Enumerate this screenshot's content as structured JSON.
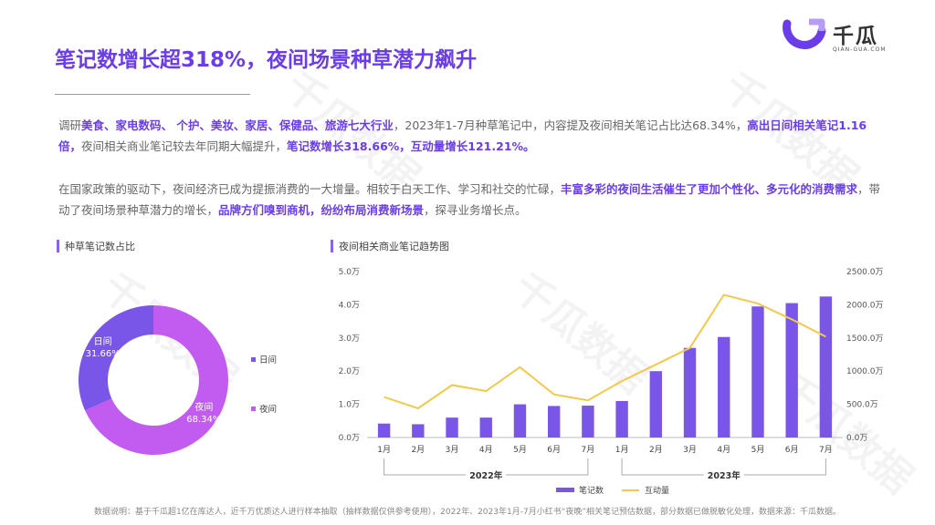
{
  "title": "笔记数增长超318%，夜间场景种草潜力飙升",
  "logo": {
    "name": "千瓜",
    "sub": "QIAN-GUA.COM",
    "color": "#6a3de8"
  },
  "watermark": "千瓜数据",
  "paragraph1": [
    {
      "t": "调研",
      "hl": false
    },
    {
      "t": "美食、家电数码、 个护、美妆、家居、保健品、旅游七大行业",
      "hl": true
    },
    {
      "t": "，2023年1-7月种草笔记中，内容提及夜间相关笔记占比达68.34%，",
      "hl": false
    },
    {
      "t": "高出日间相关笔记1.16倍，",
      "hl": true
    },
    {
      "t": "夜间相关商业笔记较去年同期大幅提升，",
      "hl": false
    },
    {
      "t": "笔记数增长318.66%，互动量增长121.21%。",
      "hl": true
    }
  ],
  "paragraph2": [
    {
      "t": "在国家政策的驱动下，夜间经济已成为提振消费的一大增量。相较于白天工作、学习和社交的忙碌，",
      "hl": false
    },
    {
      "t": "丰富多彩的夜间生活催生了更加个性化、多元化的消费需求",
      "hl": true
    },
    {
      "t": "，带动了夜间场景种草潜力的增长，",
      "hl": false
    },
    {
      "t": "品牌方们嗅到商机，纷纷布局消费新场景",
      "hl": true
    },
    {
      "t": "，探寻业务增长点。",
      "hl": false
    }
  ],
  "section1_title": "种草笔记数占比",
  "section2_title": "夜间相关商业笔记趋势图",
  "footer": "数据说明：基于千瓜超1亿在库达人，近千万优质达人进行样本抽取（抽样数据仅供参考使用），2022年、2023年1月-7月小红书“夜晚”相关笔记预估数据，部分数据已做脱敏化处理，数据来源：千瓜数据。",
  "chart_data": [
    {
      "type": "pie",
      "title": "种草笔记数占比",
      "slices": [
        {
          "name": "夜间",
          "label": "68.34%",
          "value": 68.34,
          "color": "#c25cf0"
        },
        {
          "name": "日间",
          "label": "31.66%",
          "value": 31.66,
          "color": "#7a56e8"
        }
      ],
      "legend": [
        "日间",
        "夜间"
      ],
      "legend_position": "right"
    },
    {
      "type": "bar",
      "title": "夜间相关商业笔记趋势图",
      "categories": [
        "1月",
        "2月",
        "3月",
        "4月",
        "5月",
        "6月",
        "7月",
        "1月",
        "2月",
        "3月",
        "4月",
        "5月",
        "6月",
        "7月"
      ],
      "groups": [
        {
          "label": "2022年",
          "from": 0,
          "to": 6
        },
        {
          "label": "2023年",
          "from": 7,
          "to": 13
        }
      ],
      "series": [
        {
          "name": "笔记数",
          "type": "bar",
          "axis": "left",
          "color": "#7a56e8",
          "values": [
            0.42,
            0.4,
            0.6,
            0.6,
            1.0,
            0.95,
            0.96,
            1.1,
            2.0,
            2.7,
            3.03,
            3.95,
            4.05,
            4.25
          ]
        },
        {
          "name": "互动量",
          "type": "line",
          "axis": "right",
          "color": "#f2c94c",
          "values": [
            610,
            440,
            790,
            700,
            1060,
            650,
            560,
            850,
            1100,
            1350,
            2150,
            2020,
            1780,
            1520
          ]
        }
      ],
      "y_left": {
        "min": 0,
        "max": 5,
        "ticks": [
          "0.0万",
          "1.0万",
          "2.0万",
          "3.0万",
          "4.0万",
          "5.0万"
        ]
      },
      "y_right": {
        "min": 0,
        "max": 2500,
        "ticks": [
          "0.0万",
          "500.0万",
          "1000.0万",
          "1500.0万",
          "2000.0万",
          "2500.0万"
        ]
      },
      "legend_position": "bottom",
      "grid": false
    }
  ]
}
